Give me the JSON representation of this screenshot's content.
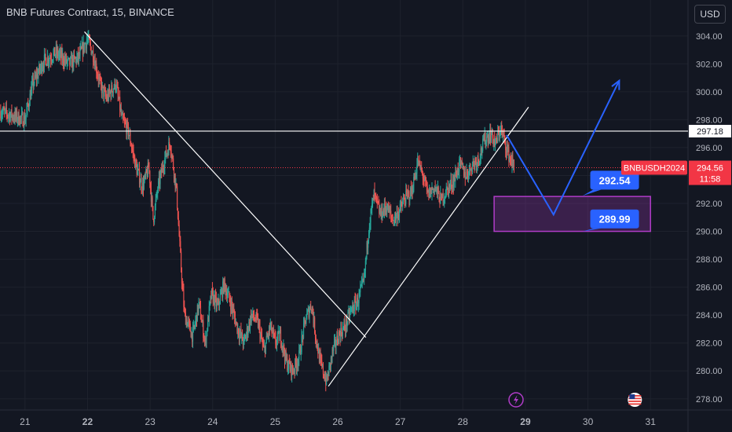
{
  "header": {
    "title": "BNB Futures Contract, 15, BINANCE",
    "currency_label": "USD"
  },
  "colors": {
    "background": "#131722",
    "up": "#26a69a",
    "down": "#ef5350",
    "trendline": "#ffffff",
    "projection": "#2962ff",
    "target_box": "#b03cc8",
    "price_tag": "#f23645",
    "callout": "#2962ff"
  },
  "chart_data": {
    "type": "candlestick",
    "title": "BNB Futures Contract, 15, BINANCE",
    "xlabel": "",
    "ylabel": "",
    "x_ticks": [
      "21",
      "22",
      "23",
      "24",
      "25",
      "26",
      "27",
      "28",
      "29",
      "30",
      "31"
    ],
    "x_ticks_bold": [
      "22",
      "29"
    ],
    "xlim": [
      20.6,
      31.6
    ],
    "y_ticks": [
      278.0,
      280.0,
      282.0,
      284.0,
      286.0,
      288.0,
      290.0,
      292.0,
      294.0,
      296.0,
      298.0,
      300.0,
      302.0,
      304.0
    ],
    "ylim": [
      277.2,
      305.0
    ],
    "grid": true,
    "price_path": [
      [
        20.6,
        298.6
      ],
      [
        20.85,
        298.2
      ],
      [
        21.0,
        298.0
      ],
      [
        21.12,
        300.5
      ],
      [
        21.3,
        302.2
      ],
      [
        21.5,
        302.8
      ],
      [
        21.7,
        302.0
      ],
      [
        21.85,
        302.4
      ],
      [
        22.0,
        303.8
      ],
      [
        22.1,
        302.5
      ],
      [
        22.2,
        300.5
      ],
      [
        22.3,
        299.5
      ],
      [
        22.45,
        300.6
      ],
      [
        22.55,
        298.0
      ],
      [
        22.65,
        297.2
      ],
      [
        22.78,
        294.5
      ],
      [
        22.88,
        293.2
      ],
      [
        22.98,
        294.6
      ],
      [
        23.05,
        290.8
      ],
      [
        23.12,
        293.0
      ],
      [
        23.22,
        295.0
      ],
      [
        23.32,
        296.4
      ],
      [
        23.42,
        293.0
      ],
      [
        23.5,
        287.0
      ],
      [
        23.55,
        284.0
      ],
      [
        23.68,
        282.5
      ],
      [
        23.78,
        284.8
      ],
      [
        23.88,
        282.0
      ],
      [
        23.98,
        285.5
      ],
      [
        24.08,
        284.6
      ],
      [
        24.18,
        286.2
      ],
      [
        24.28,
        285.0
      ],
      [
        24.4,
        283.0
      ],
      [
        24.5,
        282.0
      ],
      [
        24.62,
        284.0
      ],
      [
        24.72,
        283.5
      ],
      [
        24.82,
        281.4
      ],
      [
        24.92,
        283.2
      ],
      [
        25.0,
        282.0
      ],
      [
        25.08,
        282.6
      ],
      [
        25.18,
        280.6
      ],
      [
        25.28,
        280.0
      ],
      [
        25.38,
        281.0
      ],
      [
        25.48,
        283.6
      ],
      [
        25.58,
        284.8
      ],
      [
        25.65,
        282.4
      ],
      [
        25.72,
        280.6
      ],
      [
        25.82,
        279.2
      ],
      [
        25.92,
        281.4
      ],
      [
        26.02,
        282.6
      ],
      [
        26.12,
        283.2
      ],
      [
        26.22,
        284.4
      ],
      [
        26.32,
        285.0
      ],
      [
        26.42,
        286.5
      ],
      [
        26.5,
        290.5
      ],
      [
        26.58,
        292.6
      ],
      [
        26.68,
        291.2
      ],
      [
        26.78,
        291.8
      ],
      [
        26.88,
        290.8
      ],
      [
        26.98,
        291.4
      ],
      [
        27.08,
        292.4
      ],
      [
        27.18,
        292.8
      ],
      [
        27.28,
        295.0
      ],
      [
        27.36,
        294.0
      ],
      [
        27.44,
        292.6
      ],
      [
        27.55,
        293.2
      ],
      [
        27.65,
        292.2
      ],
      [
        27.75,
        293.0
      ],
      [
        27.85,
        293.6
      ],
      [
        27.95,
        294.8
      ],
      [
        28.05,
        294.0
      ],
      [
        28.15,
        294.8
      ],
      [
        28.25,
        295.2
      ],
      [
        28.35,
        296.6
      ],
      [
        28.45,
        297.0
      ],
      [
        28.52,
        296.2
      ],
      [
        28.6,
        297.4
      ],
      [
        28.67,
        296.4
      ],
      [
        28.74,
        295.4
      ],
      [
        28.82,
        294.56
      ]
    ],
    "last_price": 294.56,
    "last_price_symbol": "BNBUSDH2024",
    "countdown": "11:58",
    "horizontal_line": {
      "price": 297.18,
      "label": "297.18"
    },
    "trendlines": [
      {
        "from": [
          21.95,
          304.3
        ],
        "to": [
          26.45,
          282.4
        ]
      },
      {
        "from": [
          25.85,
          278.9
        ],
        "to": [
          29.05,
          298.9
        ]
      }
    ],
    "projection_path": [
      [
        28.7,
        296.9
      ],
      [
        29.45,
        291.2
      ],
      [
        30.5,
        300.8
      ]
    ],
    "target_zone": {
      "x0": 28.5,
      "x1": 31.0,
      "y0": 290.0,
      "y1": 292.5
    },
    "callouts": [
      {
        "label": "292.54",
        "x": 30.1,
        "y": 292.54
      },
      {
        "label": "289.99",
        "x": 30.1,
        "y": 289.99
      }
    ],
    "event_markers": [
      {
        "icon": "lightning-icon",
        "x": 28.85
      },
      {
        "icon": "us-flag-icon",
        "x": 30.75
      }
    ]
  }
}
